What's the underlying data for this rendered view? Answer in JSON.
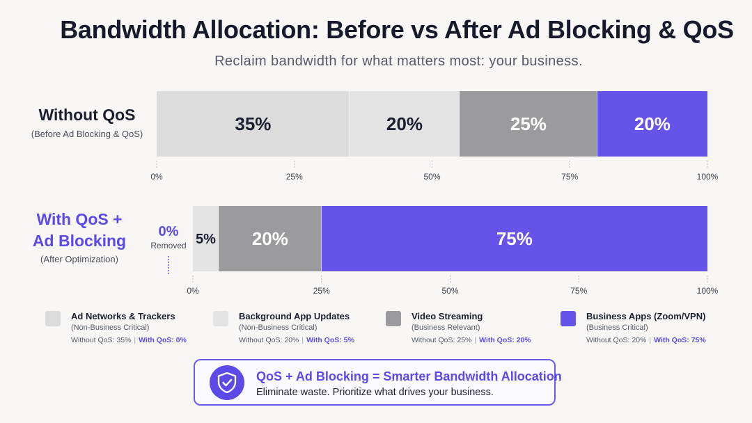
{
  "title": "Bandwidth Allocation: Before vs After Ad Blocking & QoS",
  "subtitle": "Reclaim bandwidth for what matters most: your business.",
  "chart_data": {
    "type": "bar",
    "orientation": "horizontal-stacked-100",
    "xlim": [
      0,
      100
    ],
    "x_ticks": [
      "0%",
      "25%",
      "50%",
      "75%",
      "100%"
    ],
    "categories": [
      "Without QoS",
      "With QoS + Ad Blocking"
    ],
    "category_sublabels": [
      "(Before Ad Blocking & QoS)",
      "(After Optimization)"
    ],
    "series": [
      {
        "name": "Ad Networks & Trackers",
        "values": [
          35,
          0
        ],
        "data_labels": [
          "35%",
          "0%"
        ],
        "color": "#dcdcdc"
      },
      {
        "name": "Background App Updates",
        "values": [
          20,
          5
        ],
        "data_labels": [
          "20%",
          "5%"
        ],
        "color": "#e3e3e3"
      },
      {
        "name": "Video Streaming",
        "values": [
          25,
          20
        ],
        "data_labels": [
          "25%",
          "20%"
        ],
        "color": "#9b9b9d"
      },
      {
        "name": "Business Apps (Zoom/VPN)",
        "values": [
          20,
          75
        ],
        "data_labels": [
          "20%",
          "75%"
        ],
        "color": "#6553ea"
      }
    ]
  },
  "rows": {
    "before": {
      "main": "Without QoS",
      "sub": "(Before Ad Blocking & QoS)"
    },
    "after": {
      "main_line1": "With QoS +",
      "main_line2": "Ad Blocking",
      "sub": "(After Optimization)"
    }
  },
  "removed": {
    "value": "0%",
    "label": "Removed"
  },
  "legend": [
    {
      "name": "Ad Networks & Trackers",
      "criticality": "(Non-Business Critical)",
      "without": "Without QoS: 35%",
      "with": "With QoS: 0%",
      "color": "#dcdcdc"
    },
    {
      "name": "Background App Updates",
      "criticality": "(Non-Business Critical)",
      "without": "Without QoS: 20%",
      "with": "With QoS: 5%",
      "color": "#e3e3e3"
    },
    {
      "name": "Video Streaming",
      "criticality": "(Business Relevant)",
      "without": "Without QoS: 25%",
      "with": "With QoS: 20%",
      "color": "#9b9b9d"
    },
    {
      "name": "Business Apps (Zoom/VPN)",
      "criticality": "(Business Critical)",
      "without": "Without QoS: 20%",
      "with": "With QoS: 75%",
      "color": "#6553ea"
    }
  ],
  "callout": {
    "icon": "shield-check-icon",
    "headline": "QoS + Ad Blocking = Smarter Bandwidth Allocation",
    "body": "Eliminate waste. Prioritize what drives your business."
  },
  "colors": {
    "accent": "#5b4ae8",
    "text": "#1b1f2e"
  }
}
